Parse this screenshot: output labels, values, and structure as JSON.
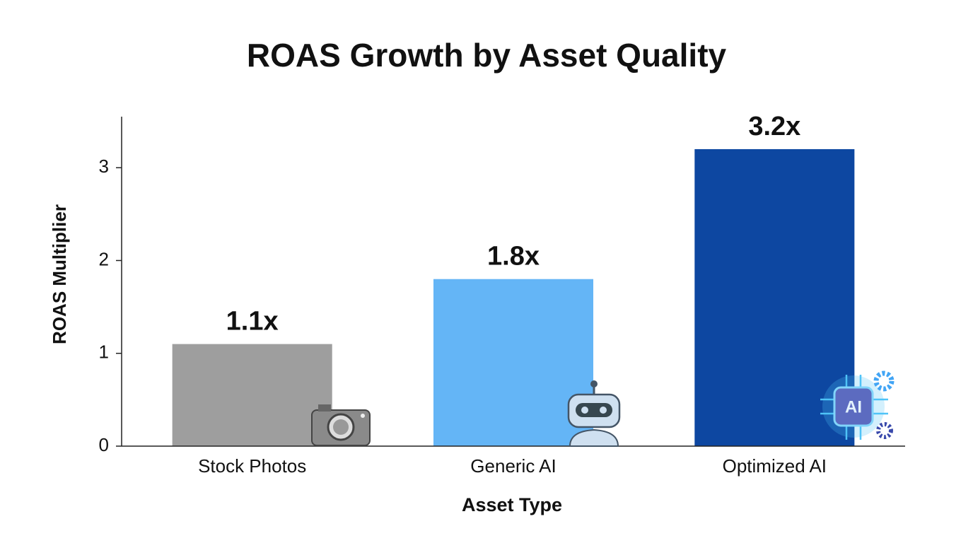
{
  "chart_data": {
    "type": "bar",
    "title": "ROAS Growth by Asset Quality",
    "x_label": "Asset Type",
    "y_label": "ROAS Multiplier",
    "categories": [
      "Stock Photos",
      "Generic AI",
      "Optimized AI"
    ],
    "values": [
      1.1,
      1.8,
      3.2
    ],
    "value_labels": [
      "1.1x",
      "1.8x",
      "3.2x"
    ],
    "colors": [
      "#9e9e9e",
      "#64b5f6",
      "#0d47a1"
    ],
    "ylim": [
      0,
      3.55
    ],
    "yticks": [
      0,
      1,
      2,
      3
    ],
    "grid": false
  }
}
